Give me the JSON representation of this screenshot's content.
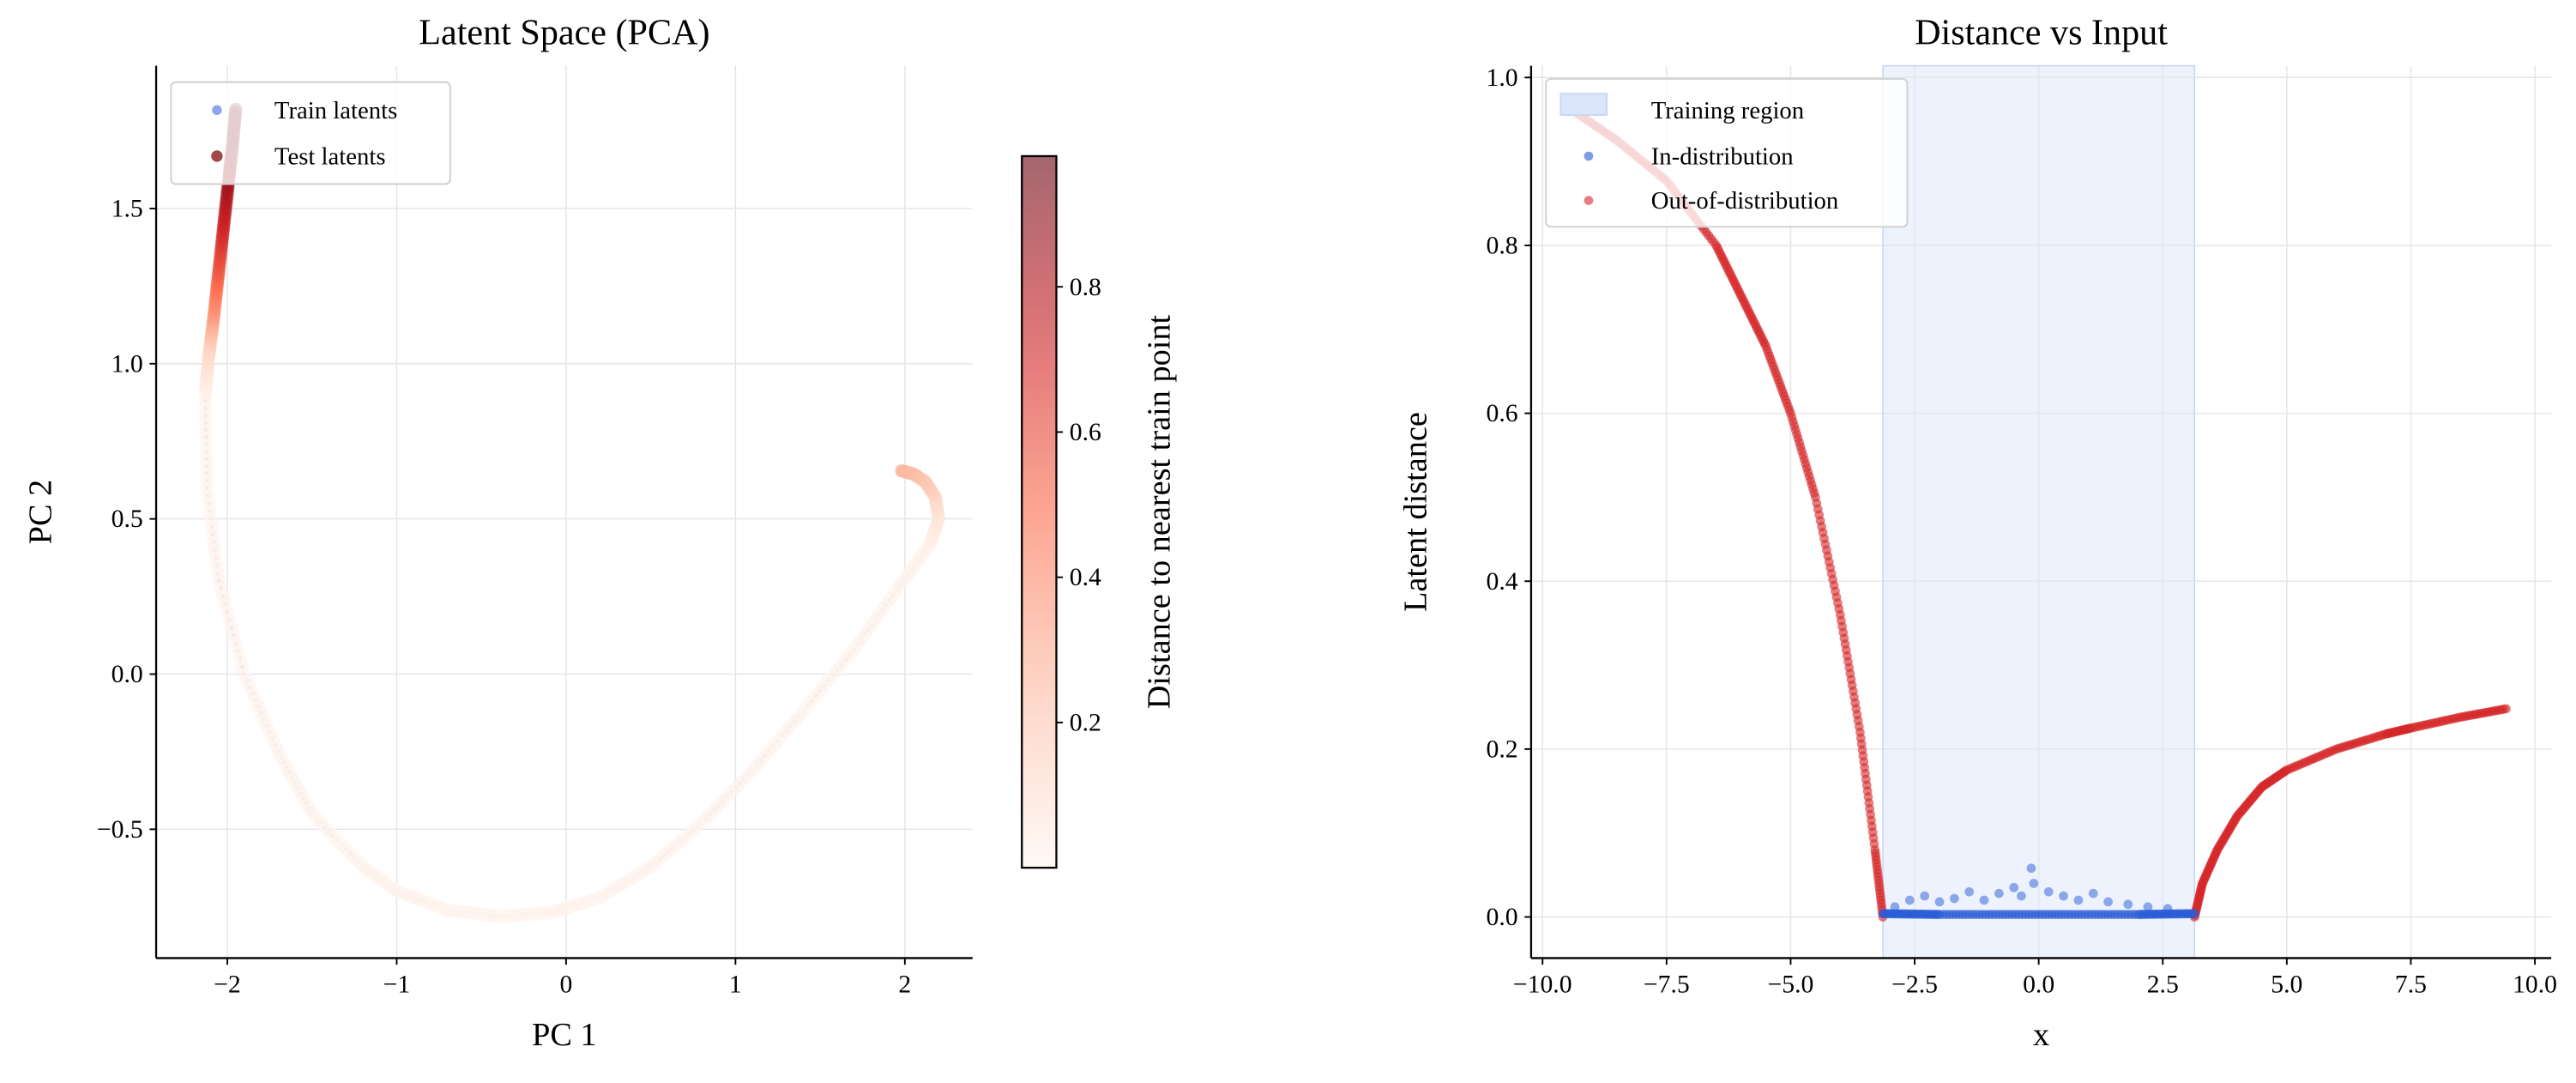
{
  "chart_data": [
    {
      "type": "scatter",
      "title": "Latent Space (PCA)",
      "xlabel": "PC 1",
      "ylabel": "PC 2",
      "xlim": [
        -2.42,
        2.4
      ],
      "ylim": [
        -0.915,
        1.96
      ],
      "xticks": [
        -2,
        -1,
        0,
        1,
        2
      ],
      "xtick_labels": [
        "−2",
        "−1",
        "0",
        "1",
        "2"
      ],
      "yticks": [
        -0.5,
        0.0,
        0.5,
        1.0,
        1.5
      ],
      "ytick_labels": [
        "−0.5",
        "0.0",
        "0.5",
        "1.0",
        "1.5"
      ],
      "grid": true,
      "legend_placement": "upper-left",
      "series": [
        {
          "name": "Train latents",
          "color": "#4169e1",
          "points": [
            [
              -2.13,
              0.88
            ],
            [
              -2.12,
              0.6
            ],
            [
              -2.05,
              0.3
            ],
            [
              -1.9,
              0.0
            ],
            [
              -1.7,
              -0.25
            ],
            [
              -1.5,
              -0.45
            ],
            [
              -1.2,
              -0.62
            ],
            [
              -1.0,
              -0.7
            ],
            [
              -0.7,
              -0.76
            ],
            [
              -0.4,
              -0.78
            ],
            [
              -0.1,
              -0.77
            ],
            [
              0.2,
              -0.72
            ],
            [
              0.5,
              -0.62
            ],
            [
              0.8,
              -0.48
            ],
            [
              1.1,
              -0.31
            ],
            [
              1.4,
              -0.12
            ],
            [
              1.7,
              0.08
            ],
            [
              1.95,
              0.27
            ],
            [
              2.15,
              0.42
            ],
            [
              2.2,
              0.48
            ]
          ]
        },
        {
          "name": "Test latents",
          "color": "#8b1a1a",
          "colored_by": "distance",
          "points": [
            [
              -1.95,
              1.82,
              0.96
            ],
            [
              -1.97,
              1.7,
              0.93
            ],
            [
              -1.99,
              1.6,
              0.88
            ],
            [
              -2.02,
              1.45,
              0.75
            ],
            [
              -2.05,
              1.3,
              0.58
            ],
            [
              -2.08,
              1.15,
              0.38
            ],
            [
              -2.11,
              1.02,
              0.12
            ],
            [
              -2.13,
              0.9,
              0.02
            ],
            [
              -2.12,
              0.6,
              0.01
            ],
            [
              -2.05,
              0.3,
              0.01
            ],
            [
              -1.9,
              0.0,
              0.01
            ],
            [
              -1.7,
              -0.25,
              0.01
            ],
            [
              -1.5,
              -0.45,
              0.01
            ],
            [
              -1.2,
              -0.62,
              0.01
            ],
            [
              -1.0,
              -0.7,
              0.01
            ],
            [
              -0.7,
              -0.76,
              0.01
            ],
            [
              -0.4,
              -0.78,
              0.01
            ],
            [
              -0.1,
              -0.77,
              0.01
            ],
            [
              0.2,
              -0.72,
              0.01
            ],
            [
              0.5,
              -0.62,
              0.01
            ],
            [
              0.8,
              -0.48,
              0.01
            ],
            [
              1.1,
              -0.31,
              0.01
            ],
            [
              1.4,
              -0.12,
              0.01
            ],
            [
              1.7,
              0.08,
              0.01
            ],
            [
              1.95,
              0.27,
              0.01
            ],
            [
              2.15,
              0.42,
              0.02
            ],
            [
              2.2,
              0.5,
              0.06
            ],
            [
              2.18,
              0.57,
              0.12
            ],
            [
              2.12,
              0.62,
              0.18
            ],
            [
              2.05,
              0.645,
              0.22
            ],
            [
              1.98,
              0.655,
              0.25
            ]
          ]
        }
      ],
      "colorbar": {
        "label": "Distance to nearest train point",
        "colormap": "Reds",
        "range": [
          0,
          0.98
        ],
        "ticks": [
          0.2,
          0.4,
          0.6,
          0.8
        ],
        "tick_labels": [
          "0.2",
          "0.4",
          "0.6",
          "0.8"
        ]
      }
    },
    {
      "type": "scatter",
      "title": "Distance vs Input",
      "xlabel": "x",
      "ylabel": "Latent distance",
      "xlim": [
        -10.23,
        10.33
      ],
      "ylim": [
        -0.049,
        1.014
      ],
      "xticks": [
        -10,
        -7.5,
        -5,
        -2.5,
        0,
        2.5,
        5,
        7.5,
        10
      ],
      "xtick_labels": [
        "−10.0",
        "−7.5",
        "−5.0",
        "−2.5",
        "0.0",
        "2.5",
        "5.0",
        "7.5",
        "10.0"
      ],
      "yticks": [
        0,
        0.2,
        0.4,
        0.6,
        0.8,
        1.0
      ],
      "ytick_labels": [
        "0.0",
        "0.2",
        "0.4",
        "0.6",
        "0.8",
        "1.0"
      ],
      "grid": true,
      "legend_placement": "upper-left",
      "training_region": {
        "label": "Training region",
        "x": [
          -3.14,
          3.14
        ],
        "color": "#dce6fa"
      },
      "series": [
        {
          "name": "In-distribution",
          "color": "#2a5bd7",
          "curve": [
            [
              -3.14,
              0.004
            ],
            [
              -2,
              0.003
            ],
            [
              0,
              0.003
            ],
            [
              2,
              0.003
            ],
            [
              3.14,
              0.004
            ]
          ],
          "outliers": [
            [
              -2.9,
              0.012
            ],
            [
              -2.6,
              0.02
            ],
            [
              -2.3,
              0.025
            ],
            [
              -2.0,
              0.018
            ],
            [
              -1.7,
              0.022
            ],
            [
              -1.4,
              0.03
            ],
            [
              -1.1,
              0.02
            ],
            [
              -0.8,
              0.028
            ],
            [
              -0.5,
              0.035
            ],
            [
              -0.35,
              0.025
            ],
            [
              -0.15,
              0.058
            ],
            [
              -0.1,
              0.04
            ],
            [
              0.2,
              0.03
            ],
            [
              0.5,
              0.025
            ],
            [
              0.8,
              0.02
            ],
            [
              1.1,
              0.028
            ],
            [
              1.4,
              0.018
            ],
            [
              1.8,
              0.015
            ],
            [
              2.2,
              0.012
            ],
            [
              2.6,
              0.01
            ]
          ]
        },
        {
          "name": "Out-of-distribution",
          "color": "#d62728",
          "curve": [
            [
              -9.42,
              0.962
            ],
            [
              -8.5,
              0.925
            ],
            [
              -7.5,
              0.877
            ],
            [
              -6.5,
              0.8
            ],
            [
              -6.0,
              0.74
            ],
            [
              -5.5,
              0.68
            ],
            [
              -5.0,
              0.6
            ],
            [
              -4.5,
              0.5
            ],
            [
              -4.0,
              0.36
            ],
            [
              -3.6,
              0.22
            ],
            [
              -3.3,
              0.08
            ],
            [
              -3.14,
              0.0
            ],
            [
              3.14,
              0.0
            ],
            [
              3.3,
              0.04
            ],
            [
              3.6,
              0.08
            ],
            [
              4.0,
              0.12
            ],
            [
              4.5,
              0.155
            ],
            [
              5.0,
              0.175
            ],
            [
              6.0,
              0.2
            ],
            [
              7.0,
              0.218
            ],
            [
              7.5,
              0.225
            ],
            [
              8.5,
              0.238
            ],
            [
              9.42,
              0.248
            ]
          ]
        }
      ]
    }
  ]
}
